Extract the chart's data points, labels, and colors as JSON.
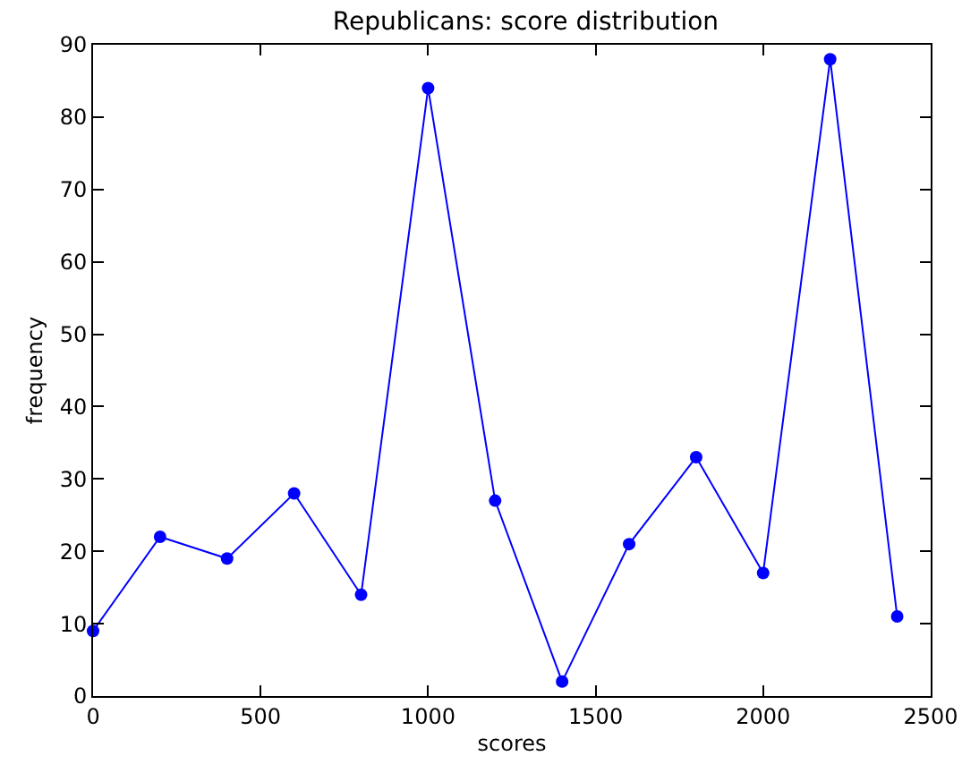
{
  "chart_data": {
    "type": "line",
    "title": "Republicans: score distribution",
    "xlabel": "scores",
    "ylabel": "frequency",
    "x": [
      0,
      200,
      400,
      600,
      800,
      1000,
      1200,
      1400,
      1600,
      1800,
      2000,
      2200,
      2400
    ],
    "series": [
      {
        "color": "#0000ff",
        "values": [
          9,
          22,
          19,
          28,
          14,
          84,
          27,
          2,
          21,
          33,
          17,
          88,
          11
        ]
      }
    ],
    "xlim": [
      0,
      2500
    ],
    "xticks": [
      0,
      500,
      1000,
      1500,
      2000,
      2500
    ],
    "ylim": [
      0,
      90
    ],
    "yticks": [
      0,
      10,
      20,
      30,
      40,
      50,
      60,
      70,
      80,
      90
    ],
    "marker": "circle",
    "line_style": "solid"
  }
}
